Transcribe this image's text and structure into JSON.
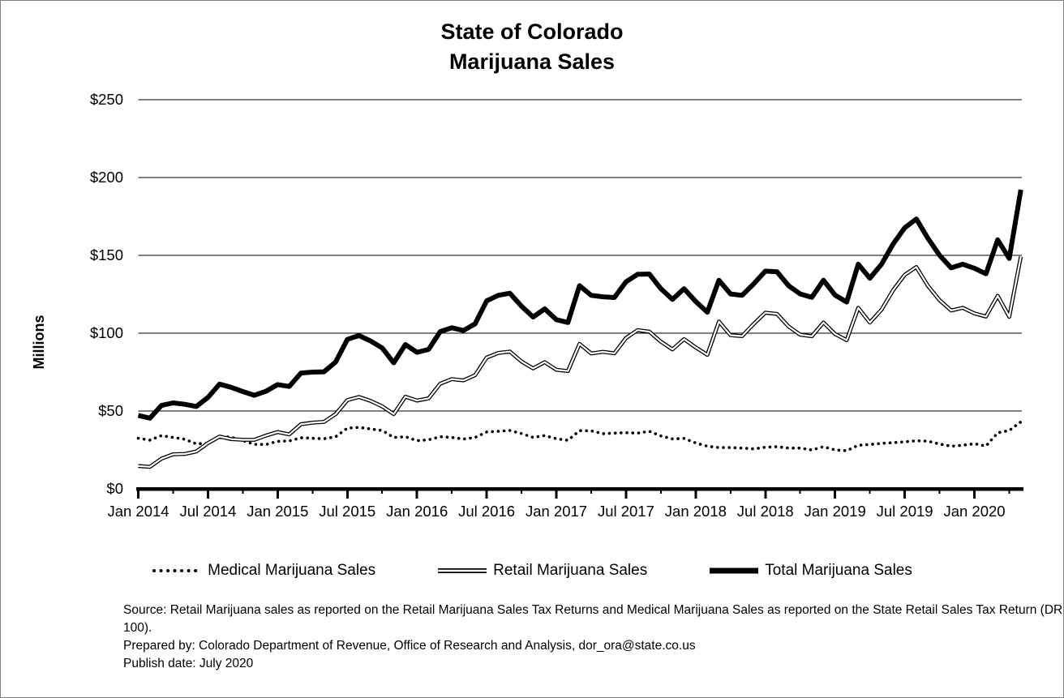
{
  "title": {
    "line1": "State of Colorado",
    "line2": "Marijuana Sales"
  },
  "y_axis_label": "Millions",
  "legend": [
    {
      "label": "Medical Marijuana Sales",
      "style": "dotted"
    },
    {
      "label": "Retail Marijuana Sales",
      "style": "double-line"
    },
    {
      "label": "Total Marijuana Sales",
      "style": "thick-solid"
    }
  ],
  "footer": {
    "source": "Source: Retail Marijuana sales as reported on the Retail Marijuana Sales Tax Returns and Medical Marijuana Sales as reported on the State Retail Sales Tax Return (DR 100).",
    "prepared_by": "Prepared by: Colorado Department of Revenue, Office of Research and Analysis, dor_ora@state.co.us",
    "publish_date": "Publish date: July 2020"
  },
  "chart_data": {
    "type": "line",
    "title": "State of Colorado Marijuana Sales",
    "xlabel": "",
    "ylabel": "Millions",
    "ylim": [
      0,
      250
    ],
    "grid": "horizontal",
    "legend_position": "bottom",
    "line_color": "#000000",
    "y_ticks": [
      {
        "label": "$0",
        "value": 0
      },
      {
        "label": "$50",
        "value": 50
      },
      {
        "label": "$100",
        "value": 100
      },
      {
        "label": "$150",
        "value": 150
      },
      {
        "label": "$200",
        "value": 200
      },
      {
        "label": "$250",
        "value": 250
      }
    ],
    "x_major_tick_labels": [
      "Jan 2014",
      "Jul 2014",
      "Jan 2015",
      "Jul 2015",
      "Jan 2016",
      "Jul 2016",
      "Jan 2017",
      "Jul 2017",
      "Jan 2018",
      "Jul 2018",
      "Jan 2019",
      "Jul 2019",
      "Jan 2020"
    ],
    "x": [
      "Jan 2014",
      "Feb 2014",
      "Mar 2014",
      "Apr 2014",
      "May 2014",
      "Jun 2014",
      "Jul 2014",
      "Aug 2014",
      "Sep 2014",
      "Oct 2014",
      "Nov 2014",
      "Dec 2014",
      "Jan 2015",
      "Feb 2015",
      "Mar 2015",
      "Apr 2015",
      "May 2015",
      "Jun 2015",
      "Jul 2015",
      "Aug 2015",
      "Sep 2015",
      "Oct 2015",
      "Nov 2015",
      "Dec 2015",
      "Jan 2016",
      "Feb 2016",
      "Mar 2016",
      "Apr 2016",
      "May 2016",
      "Jun 2016",
      "Jul 2016",
      "Aug 2016",
      "Sep 2016",
      "Oct 2016",
      "Nov 2016",
      "Dec 2016",
      "Jan 2017",
      "Feb 2017",
      "Mar 2017",
      "Apr 2017",
      "May 2017",
      "Jun 2017",
      "Jul 2017",
      "Aug 2017",
      "Sep 2017",
      "Oct 2017",
      "Nov 2017",
      "Dec 2017",
      "Jan 2018",
      "Feb 2018",
      "Mar 2018",
      "Apr 2018",
      "May 2018",
      "Jun 2018",
      "Jul 2018",
      "Aug 2018",
      "Sep 2018",
      "Oct 2018",
      "Nov 2018",
      "Dec 2018",
      "Jan 2019",
      "Feb 2019",
      "Mar 2019",
      "Apr 2019",
      "May 2019",
      "Jun 2019",
      "Jul 2019",
      "Aug 2019",
      "Sep 2019",
      "Oct 2019",
      "Nov 2019",
      "Dec 2019",
      "Jan 2020",
      "Feb 2020",
      "Mar 2020",
      "Apr 2020",
      "May 2020"
    ],
    "series": [
      {
        "name": "Medical Marijuana Sales",
        "style": "dotted",
        "values": [
          32.5,
          31.3,
          34.2,
          33.0,
          31.9,
          28.9,
          29.3,
          33.7,
          33.2,
          31.0,
          28.6,
          28.5,
          30.5,
          30.8,
          32.8,
          32.5,
          32.2,
          33.5,
          39.0,
          39.5,
          38.5,
          37.5,
          33.0,
          33.5,
          31.0,
          31.5,
          33.5,
          33.0,
          32.0,
          33.0,
          36.5,
          37.0,
          37.5,
          35.5,
          33.0,
          34.2,
          32.2,
          31.2,
          37.4,
          37.3,
          35.4,
          35.8,
          36.1,
          35.8,
          37.0,
          34.0,
          32.1,
          32.4,
          29.5,
          27.4,
          26.5,
          26.5,
          26.2,
          25.7,
          26.7,
          27.1,
          26.2,
          26.2,
          25.0,
          27.1,
          25.0,
          24.5,
          28.0,
          28.5,
          29.2,
          29.7,
          30.2,
          30.9,
          30.6,
          28.8,
          27.4,
          28.0,
          29.0,
          27.5,
          36.0,
          37.5,
          43.0
        ]
      },
      {
        "name": "Retail Marijuana Sales",
        "style": "double-line",
        "values": [
          14.7,
          14.1,
          19.4,
          22.2,
          22.4,
          24.0,
          29.4,
          33.6,
          32.0,
          31.5,
          31.5,
          34.2,
          36.5,
          35.0,
          41.5,
          42.5,
          43.0,
          48.0,
          57.0,
          59.0,
          56.5,
          53.0,
          48.0,
          59.2,
          56.7,
          58.1,
          67.5,
          70.5,
          69.7,
          73.0,
          84.3,
          87.3,
          88.2,
          81.8,
          77.4,
          81.4,
          76.5,
          75.7,
          93.1,
          87.0,
          88.0,
          87.1,
          96.9,
          102.0,
          101.0,
          94.6,
          89.6,
          96.2,
          90.9,
          86.1,
          107.5,
          98.7,
          98.1,
          106.0,
          113.2,
          112.4,
          104.3,
          99.0,
          98.0,
          106.9,
          99.5,
          95.5,
          116.3,
          106.8,
          115.1,
          127.6,
          137.5,
          142.5,
          130.4,
          121.2,
          114.6,
          116.3,
          112.7,
          110.7,
          124.0,
          110.5,
          149.2
        ]
      },
      {
        "name": "Total Marijuana Sales",
        "style": "thick-solid",
        "values": [
          47.2,
          45.4,
          53.6,
          55.2,
          54.3,
          52.9,
          58.7,
          67.3,
          65.2,
          62.5,
          60.1,
          62.7,
          67.0,
          65.8,
          74.3,
          75.0,
          75.2,
          81.5,
          96.0,
          98.5,
          95.0,
          90.5,
          81.0,
          92.7,
          87.7,
          89.6,
          101.0,
          103.5,
          101.7,
          106.0,
          120.8,
          124.3,
          125.7,
          117.3,
          110.4,
          115.6,
          108.7,
          106.9,
          130.5,
          124.3,
          123.4,
          122.9,
          133.0,
          137.8,
          138.0,
          128.6,
          121.7,
          128.6,
          120.4,
          113.5,
          134.0,
          125.2,
          124.3,
          131.7,
          139.9,
          139.5,
          130.5,
          125.2,
          123.0,
          134.0,
          124.5,
          120.0,
          144.3,
          135.3,
          144.3,
          157.3,
          167.7,
          173.4,
          161.0,
          150.0,
          142.0,
          144.3,
          141.7,
          138.2,
          160.0,
          148.0,
          192.2
        ]
      }
    ]
  }
}
